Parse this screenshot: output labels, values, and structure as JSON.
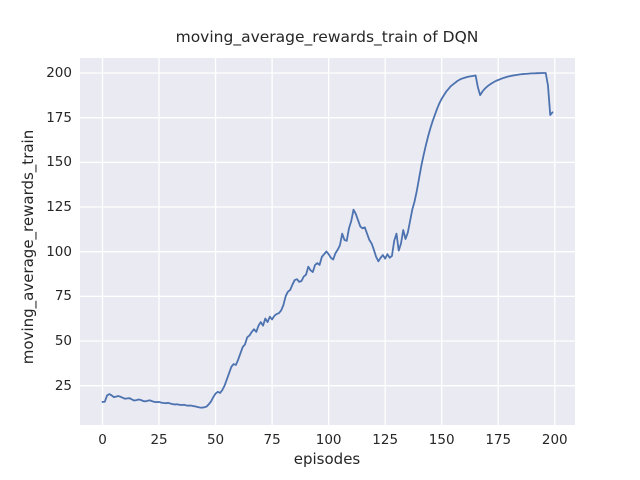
{
  "chart_data": {
    "type": "line",
    "title": "moving_average_rewards_train of DQN",
    "xlabel": "episodes",
    "ylabel": "moving_average_rewards_train",
    "x_start": 0,
    "x_step": 1,
    "xticks": [
      0,
      25,
      50,
      75,
      100,
      125,
      150,
      175,
      200
    ],
    "yticks": [
      25,
      50,
      75,
      100,
      125,
      150,
      175,
      200
    ],
    "xlim": [
      -9.95,
      208.95
    ],
    "ylim": [
      3.0,
      208.4
    ],
    "grid": true,
    "legend": "none",
    "style": {
      "plot_bg": "#eaeaf2",
      "figure_bg": "#ffffff",
      "grid_color": "#ffffff",
      "text_color": "#262626",
      "line_width": 1.8
    },
    "series": [
      {
        "name": "moving_average_rewards_train",
        "color": "#4c72b0",
        "values": [
          15.9,
          16.0,
          19.5,
          20.3,
          19.6,
          18.6,
          18.9,
          19.2,
          18.8,
          18.2,
          17.7,
          17.9,
          18.0,
          17.3,
          16.7,
          16.9,
          17.3,
          17.0,
          16.4,
          16.2,
          16.6,
          16.8,
          16.3,
          15.9,
          15.8,
          15.9,
          15.5,
          15.3,
          15.2,
          15.4,
          15.0,
          14.7,
          14.5,
          14.6,
          14.3,
          14.2,
          14.3,
          14.0,
          13.8,
          13.9,
          13.6,
          13.4,
          13.1,
          12.8,
          12.7,
          12.9,
          13.3,
          14.6,
          16.2,
          18.6,
          20.6,
          21.6,
          20.9,
          22.6,
          25.1,
          28.6,
          32.1,
          35.6,
          37.1,
          36.6,
          39.6,
          43.1,
          46.6,
          48.1,
          52.1,
          53.1,
          55.1,
          56.6,
          55.1,
          58.6,
          60.6,
          58.6,
          62.6,
          60.6,
          63.6,
          62.1,
          64.1,
          65.1,
          65.6,
          67.1,
          70.1,
          75.1,
          77.6,
          78.6,
          81.6,
          84.1,
          84.6,
          83.1,
          83.6,
          86.1,
          87.1,
          91.6,
          89.6,
          88.6,
          92.6,
          93.6,
          92.6,
          97.1,
          98.6,
          100.1,
          98.6,
          96.6,
          95.6,
          99.1,
          101.1,
          103.6,
          110.1,
          106.6,
          106.1,
          113.1,
          117.1,
          123.5,
          121.1,
          117.6,
          114.1,
          113.1,
          113.6,
          110.1,
          106.6,
          104.6,
          101.1,
          97.1,
          94.6,
          96.6,
          98.1,
          96.1,
          98.6,
          96.6,
          97.6,
          106.1,
          110.1,
          100.6,
          104.6,
          112.1,
          107.1,
          110.6,
          117.1,
          123.6,
          128.1,
          134.1,
          141.1,
          148.1,
          154.1,
          159.6,
          164.6,
          169.1,
          173.1,
          176.6,
          180.1,
          183.1,
          185.6,
          187.6,
          189.6,
          191.1,
          192.6,
          193.6,
          194.6,
          195.6,
          196.3,
          196.9,
          197.3,
          197.7,
          198.0,
          198.2,
          198.4,
          198.6,
          192.0,
          187.6,
          189.6,
          191.1,
          192.3,
          193.3,
          194.1,
          194.9,
          195.6,
          196.1,
          196.6,
          197.1,
          197.5,
          197.9,
          198.2,
          198.5,
          198.7,
          198.9,
          199.1,
          199.3,
          199.4,
          199.5,
          199.6,
          199.7,
          199.8,
          199.8,
          199.9,
          199.9,
          200.0,
          200.0,
          200.0,
          193.0,
          176.5,
          178.0
        ]
      }
    ]
  }
}
